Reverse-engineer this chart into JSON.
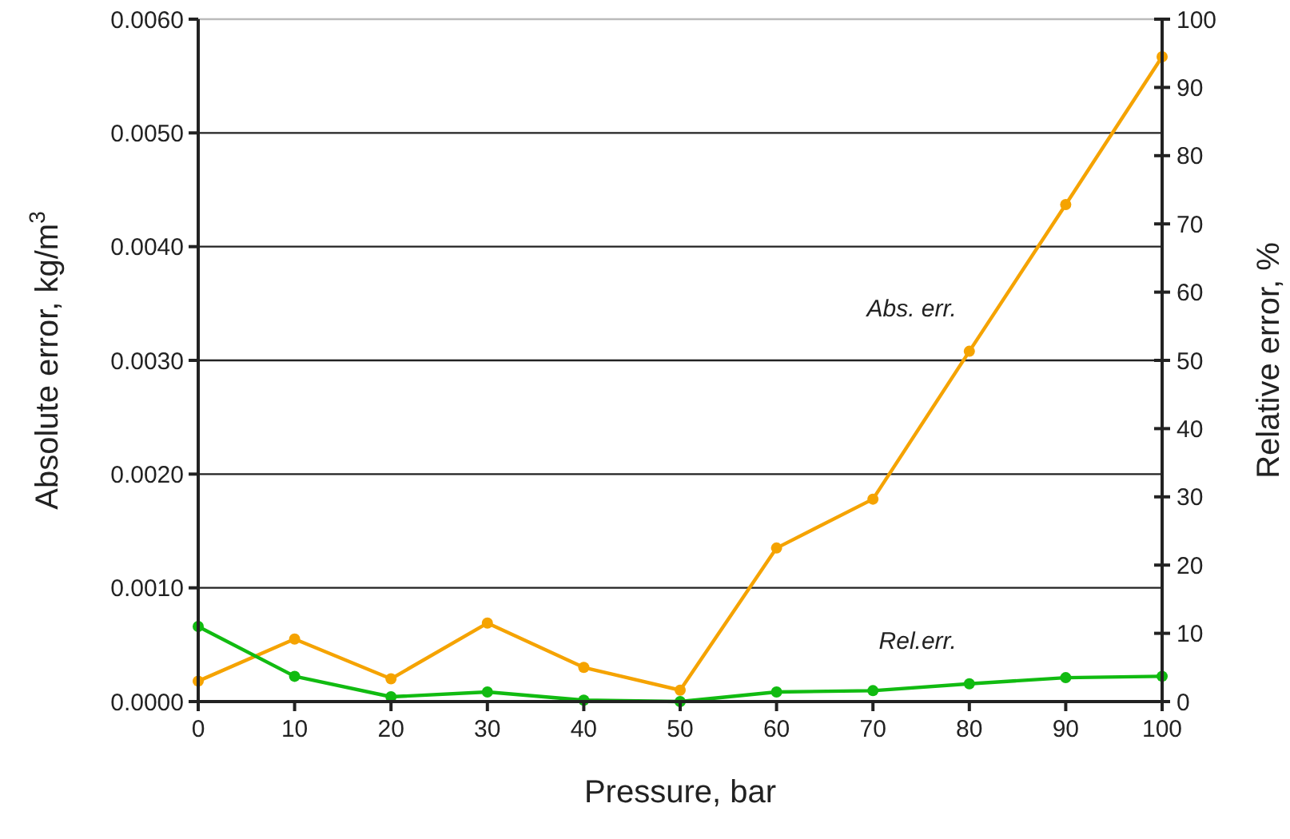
{
  "chart_data": {
    "type": "line",
    "xlabel": "Pressure, bar",
    "ylabel": "Absolute error, kg/m$^{3}$",
    "y2label": "Relative error, %",
    "x": [
      0,
      10,
      20,
      30,
      40,
      50,
      60,
      70,
      80,
      90,
      100
    ],
    "xlim": [
      0,
      100
    ],
    "xticks": [
      0,
      10,
      20,
      30,
      40,
      50,
      60,
      70,
      80,
      90,
      100
    ],
    "ylim": [
      0,
      0.006
    ],
    "yticks": [
      {
        "value": 0,
        "label": "0.0000"
      },
      {
        "value": 0.001,
        "label": "0.0010"
      },
      {
        "value": 0.002,
        "label": "0.0020"
      },
      {
        "value": 0.003,
        "label": "0.0030"
      },
      {
        "value": 0.004,
        "label": "0.0040"
      },
      {
        "value": 0.005,
        "label": "0.0050"
      },
      {
        "value": 0.006,
        "label": "0.0060"
      }
    ],
    "y2lim": [
      0,
      100
    ],
    "y2ticks": [
      0,
      10,
      20,
      30,
      40,
      50,
      60,
      70,
      80,
      90,
      100
    ],
    "grid": "y",
    "legend": false,
    "marker": "circle",
    "line_style": "solid",
    "series": [
      {
        "name": "Abs. err.",
        "color": "#f5a300",
        "values": [
          0.00018,
          0.00055,
          0.0002,
          0.00069,
          0.0003,
          0.0001,
          0.00135,
          0.00178,
          0.00308,
          0.00437,
          0.00567
        ]
      },
      {
        "name": "Rel.err.",
        "color": "#11bb11",
        "axis": "y2",
        "values": [
          11.0,
          3.7,
          0.7,
          1.4,
          0.2,
          0,
          1.4,
          1.6,
          2.6,
          3.5,
          3.7
        ]
      }
    ]
  }
}
